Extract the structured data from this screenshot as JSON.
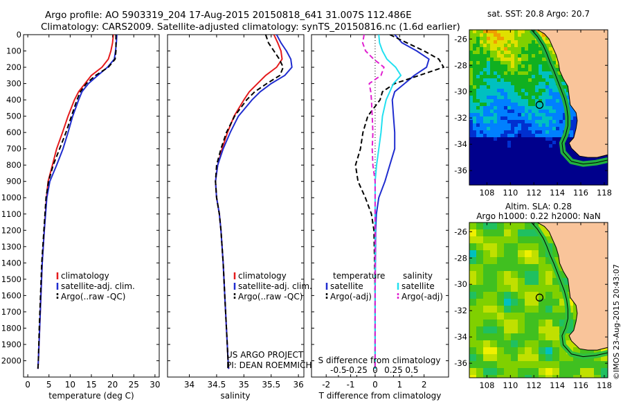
{
  "title_line1": "Argo profile: AO 5903319_204 17-Aug-2015 20150818_641 31.007S 112.486E",
  "title_line2": "Climatology: CARS2009. Satellite-adjusted climatology: synTS_20150816.nc (1.6d earlier)",
  "colors": {
    "climatology": "#e41a1c",
    "satellite": "#1f2ccf",
    "argo": "#000000",
    "cyan": "#22e0f0",
    "magenta": "#e020d0"
  },
  "chart_data": [
    {
      "type": "line",
      "id": "temperature",
      "xlabel": "temperature (deg C)",
      "xlim": [
        -1,
        31
      ],
      "ylim": [
        0,
        2100
      ],
      "xticks": [
        0,
        5,
        10,
        15,
        20,
        25,
        30
      ],
      "yticks": [
        0,
        100,
        200,
        300,
        400,
        500,
        600,
        700,
        800,
        900,
        1000,
        1100,
        1200,
        1300,
        1400,
        1500,
        1600,
        1700,
        1800,
        1900,
        2000
      ],
      "legend": [
        "climatology",
        "satellite-adj. clim.",
        "Argo(..raw -QC)"
      ],
      "series": [
        {
          "name": "climatology",
          "style": "climatology",
          "y": [
            0,
            50,
            100,
            150,
            200,
            250,
            300,
            350,
            400,
            500,
            600,
            700,
            800,
            900,
            1000,
            1200,
            1400,
            1600,
            1800,
            2000,
            2050
          ],
          "x": [
            20.2,
            20.0,
            19.6,
            19.0,
            17.5,
            15.0,
            13.5,
            12.0,
            11.0,
            9.5,
            8.2,
            6.8,
            5.8,
            4.8,
            4.4,
            3.9,
            3.4,
            3.1,
            2.8,
            2.5,
            2.4
          ]
        },
        {
          "name": "satellite-adj. clim.",
          "style": "satellite",
          "y": [
            0,
            50,
            100,
            150,
            200,
            250,
            300,
            350,
            400,
            500,
            600,
            700,
            800,
            900,
            1000,
            1200,
            1400,
            1600,
            1800,
            2000,
            2050
          ],
          "x": [
            21.0,
            20.9,
            20.7,
            20.4,
            18.8,
            16.5,
            14.3,
            12.8,
            12.0,
            10.6,
            9.5,
            8.3,
            6.8,
            5.2,
            4.5,
            3.9,
            3.4,
            3.1,
            2.8,
            2.5,
            2.4
          ]
        },
        {
          "name": "Argo(..raw -QC)",
          "style": "argo",
          "y": [
            0,
            50,
            100,
            150,
            200,
            250,
            300,
            350,
            400,
            500,
            600,
            700,
            800,
            900,
            1000,
            1200,
            1400,
            1600,
            1800,
            2000,
            2050
          ],
          "x": [
            20.8,
            20.8,
            20.8,
            20.6,
            19.0,
            16.0,
            13.8,
            12.4,
            11.6,
            10.3,
            9.0,
            7.5,
            6.0,
            4.9,
            4.3,
            3.8,
            3.3,
            3.0,
            2.7,
            2.5,
            2.4
          ]
        }
      ]
    },
    {
      "type": "line",
      "id": "salinity",
      "xlabel": "salinity",
      "xlim": [
        33.6,
        36.1
      ],
      "ylim": [
        0,
        2100
      ],
      "xticks": [
        34,
        34.5,
        35,
        35.5,
        36
      ],
      "xticklabels": [
        "34",
        "34.5",
        "35",
        "35.5",
        "36"
      ],
      "legend": [
        "climatology",
        "satellite-adj. clim.",
        "Argo(..raw -QC)"
      ],
      "annotation": [
        "US ARGO PROJECT",
        "PI: DEAN ROEMMICH"
      ],
      "series": [
        {
          "name": "climatology",
          "style": "climatology",
          "y": [
            0,
            50,
            100,
            150,
            200,
            250,
            300,
            350,
            400,
            500,
            600,
            700,
            800,
            900,
            1000,
            1100,
            1200,
            1400,
            1600,
            1800,
            2000,
            2050
          ],
          "x": [
            35.55,
            35.62,
            35.68,
            35.7,
            35.6,
            35.4,
            35.25,
            35.1,
            35.0,
            34.82,
            34.7,
            34.6,
            34.52,
            34.48,
            34.5,
            34.55,
            34.58,
            34.62,
            34.65,
            34.68,
            34.71,
            34.72
          ]
        },
        {
          "name": "satellite-adj. clim.",
          "style": "satellite",
          "y": [
            0,
            50,
            100,
            150,
            200,
            250,
            300,
            350,
            400,
            500,
            600,
            700,
            800,
            900,
            1000,
            1100,
            1200,
            1400,
            1600,
            1800,
            2000,
            2050
          ],
          "x": [
            35.6,
            35.68,
            35.78,
            35.86,
            35.88,
            35.75,
            35.5,
            35.3,
            35.15,
            34.9,
            34.75,
            34.62,
            34.52,
            34.48,
            34.5,
            34.55,
            34.58,
            34.62,
            34.65,
            34.68,
            34.71,
            34.72
          ]
        },
        {
          "name": "Argo(..raw -QC)",
          "style": "argo",
          "y": [
            0,
            50,
            100,
            150,
            200,
            250,
            300,
            350,
            400,
            500,
            600,
            700,
            800,
            900,
            1000,
            1100,
            1200,
            1400,
            1600,
            1800,
            2000,
            2050
          ],
          "x": [
            35.4,
            35.45,
            35.55,
            35.65,
            35.72,
            35.66,
            35.42,
            35.2,
            35.05,
            34.83,
            34.68,
            34.58,
            34.5,
            34.48,
            34.5,
            34.55,
            34.58,
            34.62,
            34.65,
            34.68,
            34.71,
            34.72
          ]
        }
      ]
    },
    {
      "type": "line",
      "id": "difference",
      "xlabel": "T difference from climatology",
      "xlabel_top": "S difference from climatology",
      "xlim": [
        -2.6,
        3.0
      ],
      "ylim": [
        0,
        2100
      ],
      "xticks": [
        -2,
        -1,
        0,
        1,
        2
      ],
      "xticklabels": [
        "-2",
        "-1",
        "0",
        "1",
        "2"
      ],
      "sticks": [
        -0.5,
        -0.25,
        0,
        0.25,
        0.5
      ],
      "sticklabels": [
        "-0.5",
        "-0.25",
        "0",
        "0.25",
        "0.5"
      ],
      "s_scale": 3,
      "legend_headers": [
        "temperature",
        "salinity"
      ],
      "legend": [
        "satellite",
        "Argo(-adj)",
        "satellite",
        "Argo(-adj)"
      ],
      "series": [
        {
          "name": "satellite",
          "group": "temperature",
          "style": "satellite",
          "y": [
            0,
            50,
            100,
            150,
            200,
            250,
            300,
            350,
            400,
            500,
            600,
            700,
            800,
            900,
            1000,
            1100,
            1200,
            1400,
            1600,
            1800,
            2000,
            2050
          ],
          "x": [
            0.8,
            1.1,
            1.7,
            2.2,
            2.1,
            1.6,
            1.2,
            0.8,
            0.7,
            0.75,
            0.8,
            0.8,
            0.6,
            0.4,
            0.15,
            0.05,
            0.02,
            0.01,
            0.0,
            0.0,
            0.0,
            0.0
          ]
        },
        {
          "name": "Argo(-adj)",
          "group": "temperature",
          "style": "argo",
          "y": [
            0,
            50,
            100,
            150,
            200,
            250,
            300,
            350,
            400,
            500,
            600,
            700,
            800,
            900,
            1000,
            1100,
            1200,
            1400,
            1600,
            1800,
            2000,
            2050
          ],
          "x": [
            0.6,
            1.3,
            2.0,
            2.6,
            2.8,
            1.8,
            0.8,
            0.3,
            0.2,
            -0.3,
            -0.5,
            -0.6,
            -0.8,
            -0.7,
            -0.4,
            -0.15,
            -0.05,
            -0.02,
            0.0,
            0.0,
            0.0,
            0.0
          ]
        },
        {
          "name": "satellite",
          "group": "salinity",
          "style": "cyan",
          "y": [
            0,
            50,
            100,
            150,
            200,
            250,
            300,
            350,
            400,
            500,
            600,
            700,
            800,
            900,
            1000,
            1100,
            1200,
            1400,
            1600,
            1800,
            2000,
            2050
          ],
          "x": [
            0.05,
            0.06,
            0.1,
            0.16,
            0.28,
            0.35,
            0.25,
            0.2,
            0.15,
            0.1,
            0.08,
            0.05,
            0.02,
            0.0,
            0.0,
            0.0,
            0.0,
            0.0,
            0.0,
            0.0,
            0.0,
            0.0
          ]
        },
        {
          "name": "Argo(-adj)",
          "group": "salinity",
          "style": "magenta",
          "y": [
            0,
            50,
            100,
            150,
            200,
            250,
            300,
            350,
            400,
            500,
            600,
            700,
            800,
            900,
            1000,
            1100,
            1200,
            1400,
            1600,
            1800,
            2000,
            2050
          ],
          "x": [
            -0.15,
            -0.17,
            -0.13,
            -0.02,
            0.12,
            0.08,
            -0.08,
            -0.06,
            -0.05,
            -0.04,
            -0.03,
            -0.04,
            -0.03,
            0.0,
            0.0,
            0.0,
            0.0,
            0.0,
            0.0,
            0.0,
            0.0,
            0.0
          ]
        }
      ]
    },
    {
      "type": "heatmap",
      "id": "sst_map",
      "title": "sat. SST: 20.8 Argo: 20.7",
      "xlim": [
        106.5,
        118.3
      ],
      "ylim": [
        -37.1,
        -25.3
      ],
      "xticks": [
        108,
        110,
        112,
        114,
        116,
        118
      ],
      "yticks": [
        -26,
        -28,
        -30,
        -32,
        -34,
        -36
      ],
      "float": [
        112.486,
        -31.007
      ]
    },
    {
      "type": "heatmap",
      "id": "sla_map",
      "title": "Altim. SLA: 0.28",
      "subtitle": "Argo h1000: 0.22 h2000: NaN",
      "xlim": [
        106.5,
        118.3
      ],
      "ylim": [
        -37.1,
        -25.3
      ],
      "xticks": [
        108,
        110,
        112,
        114,
        116,
        118
      ],
      "yticks": [
        -26,
        -28,
        -30,
        -32,
        -34,
        -36
      ],
      "float": [
        112.486,
        -31.007
      ]
    }
  ],
  "credit": "©IMOS 23-Aug-2015 20:43:07"
}
